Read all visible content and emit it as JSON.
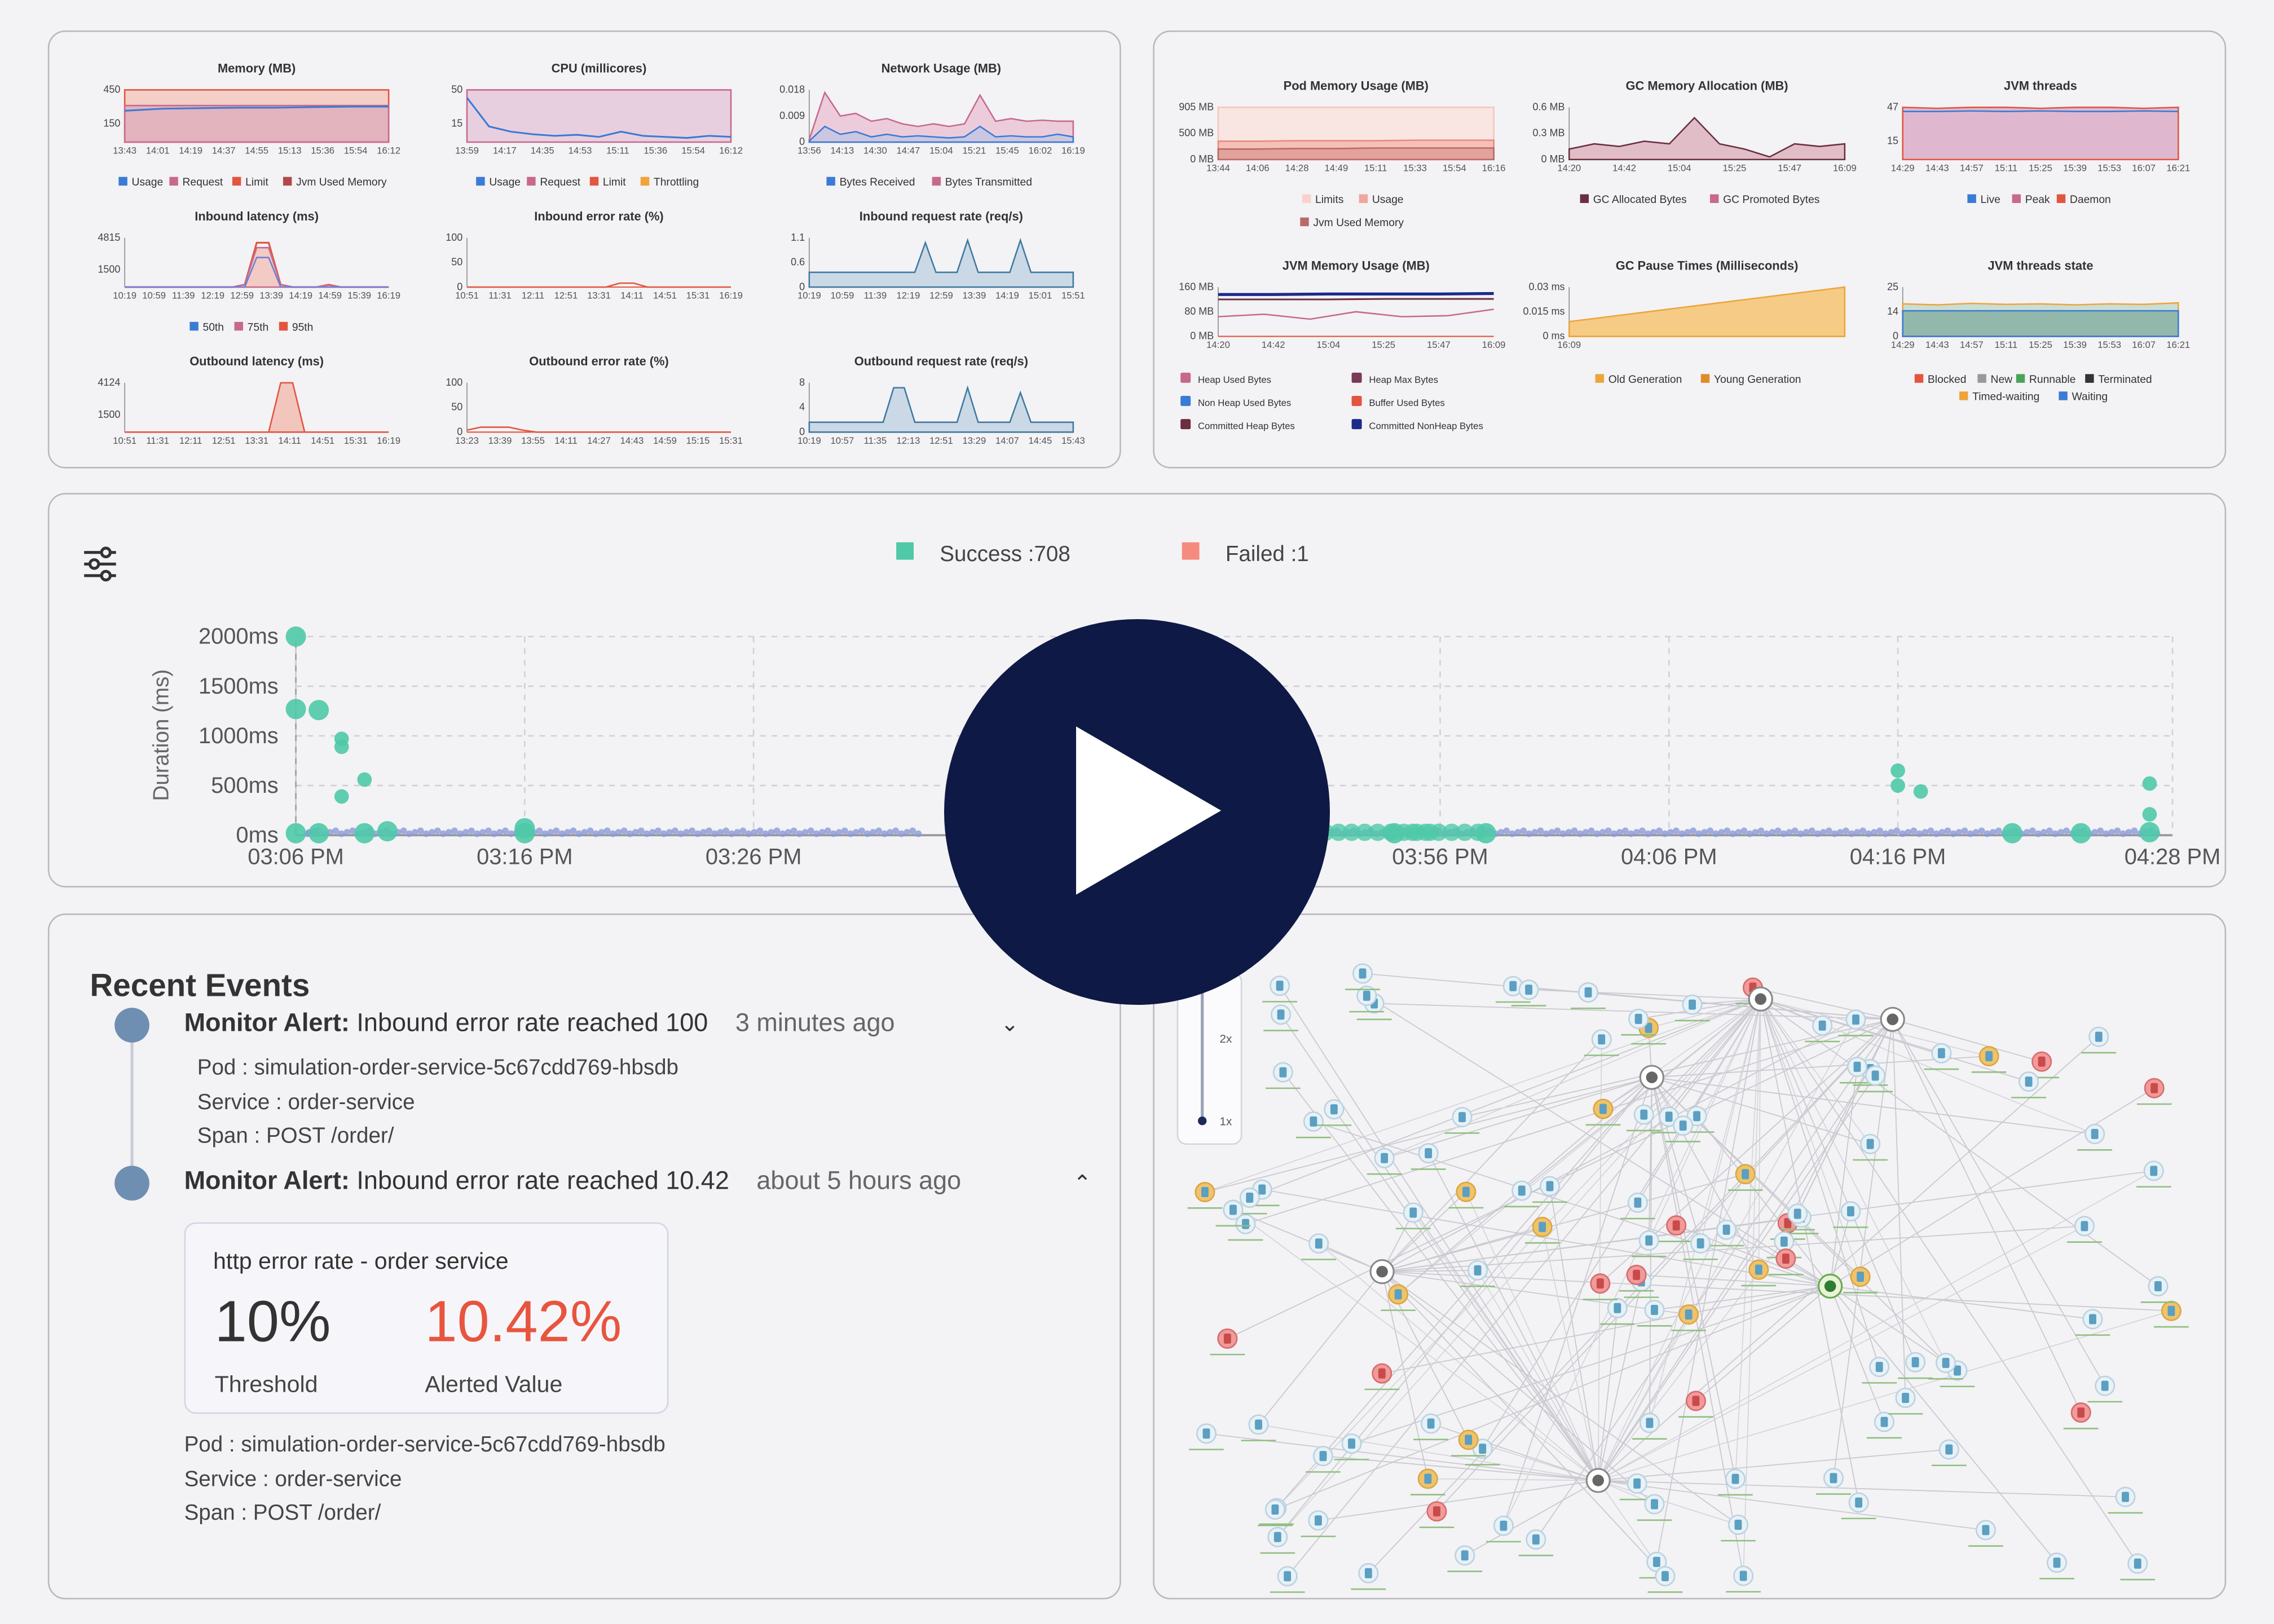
{
  "colors": {
    "accent_red": "#e8553e",
    "success": "#4fc9a8",
    "failed": "#f58b7f",
    "dot_blue": "#6e8fb1",
    "play_bg": "#0e1a45"
  },
  "top_left": {
    "row1": [
      {
        "title": "Memory (MB)",
        "y": [
          "450",
          "150"
        ],
        "x": [
          "13:43",
          "14:01",
          "14:19",
          "14:37",
          "14:55",
          "15:13",
          "15:36",
          "15:54",
          "16:12"
        ],
        "legend": [
          "Usage",
          "Request",
          "Limit",
          "Jvm Used Memory"
        ]
      },
      {
        "title": "CPU (millicores)",
        "y": [
          "50",
          "15"
        ],
        "x": [
          "13:59",
          "14:17",
          "14:35",
          "14:53",
          "15:11",
          "15:36",
          "15:54",
          "16:12"
        ],
        "legend": [
          "Usage",
          "Request",
          "Limit",
          "Throttling"
        ]
      },
      {
        "title": "Network Usage (MB)",
        "y": [
          "0.018",
          "0.009",
          "0"
        ],
        "x": [
          "13:56",
          "14:13",
          "14:30",
          "14:47",
          "15:04",
          "15:21",
          "15:45",
          "16:02",
          "16:19"
        ],
        "legend": [
          "Bytes Received",
          "Bytes Transmitted"
        ]
      }
    ],
    "row2": [
      {
        "title": "Inbound latency (ms)",
        "y": [
          "4815",
          "1500"
        ],
        "x": [
          "10:19",
          "10:59",
          "11:39",
          "12:19",
          "12:59",
          "13:39",
          "14:19",
          "14:59",
          "15:39",
          "16:19"
        ],
        "legend": [
          "50th",
          "75th",
          "95th"
        ]
      },
      {
        "title": "Inbound error rate (%)",
        "y": [
          "100",
          "50",
          "0"
        ],
        "x": [
          "10:51",
          "11:31",
          "12:11",
          "12:51",
          "13:31",
          "14:11",
          "14:51",
          "15:31",
          "16:19"
        ],
        "legend": []
      },
      {
        "title": "Inbound request rate (req/s)",
        "y": [
          "1.1",
          "0.6",
          "0"
        ],
        "x": [
          "10:19",
          "10:59",
          "11:39",
          "12:19",
          "12:59",
          "13:39",
          "14:19",
          "15:01",
          "15:51"
        ],
        "legend": []
      }
    ],
    "row3": [
      {
        "title": "Outbound latency (ms)",
        "y": [
          "4124",
          "1500"
        ],
        "x": [
          "10:51",
          "11:31",
          "12:11",
          "12:51",
          "13:31",
          "14:11",
          "14:51",
          "15:31",
          "16:19"
        ],
        "legend": []
      },
      {
        "title": "Outbound error rate (%)",
        "y": [
          "100",
          "50",
          "0"
        ],
        "x": [
          "13:23",
          "13:39",
          "13:55",
          "14:11",
          "14:27",
          "14:43",
          "14:59",
          "15:15",
          "15:31"
        ],
        "legend": []
      },
      {
        "title": "Outbound request rate (req/s)",
        "y": [
          "8",
          "4",
          "0"
        ],
        "x": [
          "10:19",
          "10:57",
          "11:35",
          "12:13",
          "12:51",
          "13:29",
          "14:07",
          "14:45",
          "15:43"
        ],
        "legend": []
      }
    ]
  },
  "top_right": {
    "row1": [
      {
        "title": "Pod Memory Usage (MB)",
        "y": [
          "905 MB",
          "500 MB",
          "0 MB"
        ],
        "x": [
          "13:44",
          "14:06",
          "14:28",
          "14:49",
          "15:11",
          "15:33",
          "15:54",
          "16:16"
        ]
      },
      {
        "title": "GC Memory Allocation (MB)",
        "y": [
          "0.6 MB",
          "0.3 MB",
          "0 MB"
        ],
        "x": [
          "14:20",
          "14:42",
          "15:04",
          "15:25",
          "15:47",
          "16:09"
        ]
      },
      {
        "title": "JVM threads",
        "y": [
          "47",
          "15"
        ],
        "x": [
          "14:29",
          "14:43",
          "14:57",
          "15:11",
          "15:25",
          "15:39",
          "15:53",
          "16:07",
          "16:21"
        ]
      }
    ],
    "row2": [
      {
        "title": "JVM Memory Usage (MB)",
        "y": [
          "160 MB",
          "80 MB",
          "0 MB"
        ],
        "x": [
          "14:20",
          "14:42",
          "15:04",
          "15:25",
          "15:47",
          "16:09"
        ]
      },
      {
        "title": "GC Pause Times (Milliseconds)",
        "y": [
          "0.03 ms",
          "0.015 ms",
          "0 ms"
        ],
        "x": [
          "16:09"
        ]
      },
      {
        "title": "JVM threads state",
        "y": [
          "25",
          "14",
          "0"
        ],
        "x": [
          "14:29",
          "14:43",
          "14:57",
          "15:11",
          "15:25",
          "15:39",
          "15:53",
          "16:07",
          "16:21"
        ]
      }
    ],
    "legends": {
      "pod_memory": [
        "Limits",
        "Usage",
        "Jvm Used Memory"
      ],
      "gc_alloc": [
        "GC Allocated Bytes",
        "GC Promoted Bytes"
      ],
      "jvm_threads": [
        "Live",
        "Peak",
        "Daemon"
      ],
      "jvm_memory": [
        "Heap Used Bytes",
        "Heap Max Bytes",
        "Non Heap Used Bytes",
        "Buffer Used Bytes",
        "Committed Heap Bytes",
        "Committed NonHeap Bytes"
      ],
      "gc_pause": [
        "Old Generation",
        "Young Generation"
      ],
      "threads_state": [
        "Blocked",
        "New",
        "Runnable",
        "Terminated",
        "Timed-waiting",
        "Waiting"
      ]
    }
  },
  "scatter": {
    "legend_success": "Success :708",
    "legend_failed": "Failed :1",
    "ylabel": "Duration (ms)",
    "yticks": [
      "2000ms",
      "1500ms",
      "1000ms",
      "500ms",
      "0ms"
    ],
    "xticks": [
      "03:06 PM",
      "03:16 PM",
      "03:26 PM",
      "03:56 PM",
      "04:06 PM",
      "04:16 PM",
      "04:28 PM"
    ],
    "xtick_partial": "03"
  },
  "events": {
    "title": "Recent Events",
    "items": [
      {
        "label": "Monitor Alert:",
        "text": "Inbound error rate reached 100",
        "ago": "3 minutes ago",
        "pod": "Pod : simulation-order-service-5c67cdd769-hbsdb",
        "service": "Service : order-service",
        "span": "Span : POST /order/"
      },
      {
        "label": "Monitor Alert:",
        "text": "Inbound error rate reached 10.42",
        "ago": "about 5 hours ago",
        "pod": "Pod : simulation-order-service-5c67cdd769-hbsdb",
        "service": "Service : order-service",
        "span": "Span : POST /order/"
      }
    ],
    "card": {
      "title": "http error rate - order service",
      "threshold": "10%",
      "threshold_label": "Threshold",
      "alerted": "10.42%",
      "alerted_label": "Alerted Value"
    }
  },
  "graph": {
    "zoom_top": "2x",
    "zoom_bottom": "1x"
  },
  "chart_data": {
    "type": "scatter",
    "title": "",
    "xlabel": "",
    "ylabel": "Duration (ms)",
    "ylim": [
      0,
      2000
    ],
    "xlim": [
      "03:06 PM",
      "04:28 PM"
    ],
    "series": [
      {
        "name": "Success :708",
        "points": [
          [
            "03:06 PM",
            2000
          ],
          [
            "03:06 PM",
            1270
          ],
          [
            "03:07 PM",
            1260
          ],
          [
            "03:08 PM",
            970
          ],
          [
            "03:08 PM",
            890
          ],
          [
            "03:08 PM",
            390
          ],
          [
            "03:09 PM",
            560
          ],
          [
            "03:06 PM",
            20
          ],
          [
            "03:07 PM",
            20
          ],
          [
            "03:09 PM",
            20
          ],
          [
            "03:10 PM",
            40
          ],
          [
            "03:16 PM",
            70
          ],
          [
            "03:16 PM",
            20
          ],
          [
            "03:58 PM",
            20
          ],
          [
            "03:54 PM",
            20
          ],
          [
            "03:50 PM",
            20
          ],
          [
            "04:16 PM",
            650
          ],
          [
            "04:16 PM",
            500
          ],
          [
            "04:17 PM",
            440
          ],
          [
            "04:27 PM",
            520
          ],
          [
            "04:27 PM",
            210
          ],
          [
            "04:27 PM",
            30
          ],
          [
            "04:21 PM",
            20
          ],
          [
            "04:24 PM",
            20
          ]
        ]
      },
      {
        "name": "Failed :1",
        "points": []
      }
    ]
  }
}
